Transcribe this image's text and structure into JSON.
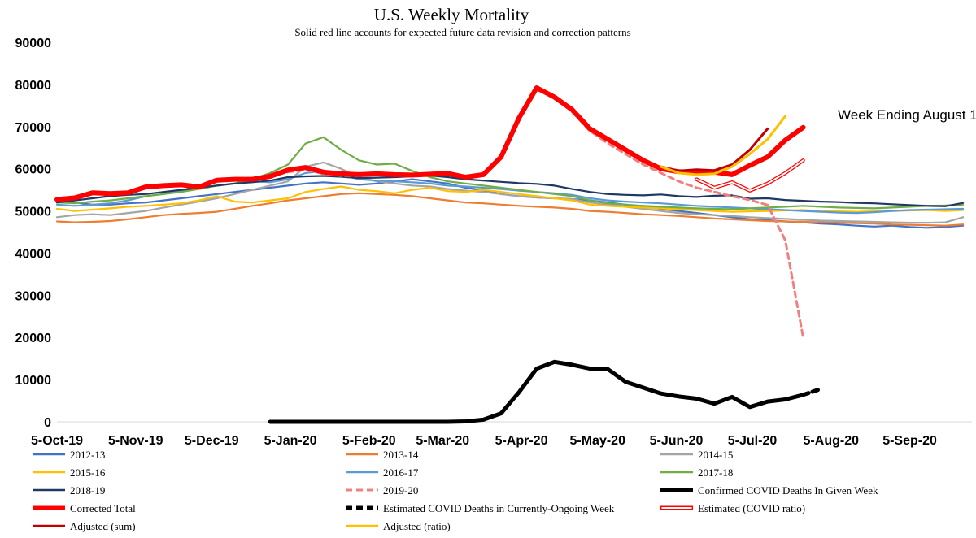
{
  "chart_data": {
    "type": "line",
    "title": "U.S. Weekly Mortality",
    "subtitle": "Solid red line accounts for expected future data revision and correction patterns",
    "annotation": "Week Ending August 1",
    "ylim": [
      0,
      90000
    ],
    "yticks": [
      "0",
      "10000",
      "20000",
      "30000",
      "40000",
      "50000",
      "60000",
      "70000",
      "80000",
      "90000"
    ],
    "x_tick_labels": [
      "5-Oct-19",
      "5-Nov-19",
      "5-Dec-19",
      "5-Jan-20",
      "5-Feb-20",
      "5-Mar-20",
      "5-Apr-20",
      "5-May-20",
      "5-Jun-20",
      "5-Jul-20",
      "5-Aug-20",
      "5-Sep-20"
    ],
    "x_weeks": 52,
    "grid": false,
    "legend_position": "bottom",
    "series": [
      {
        "name": "2012-13",
        "color": "#4472C4",
        "width": 2.2,
        "style": "solid",
        "values": [
          52500,
          52000,
          51500,
          51500,
          51800,
          52000,
          52500,
          53000,
          53500,
          54000,
          54500,
          55000,
          55500,
          56000,
          56500,
          56800,
          56500,
          56200,
          56500,
          57000,
          57500,
          57000,
          56500,
          55500,
          54800,
          54000,
          53500,
          53200,
          53000,
          52800,
          52500,
          52000,
          51500,
          51000,
          50500,
          50000,
          49500,
          49000,
          48500,
          48000,
          47800,
          47500,
          47300,
          47000,
          46800,
          46500,
          46300,
          46500,
          46200,
          46000,
          46200,
          46500
        ]
      },
      {
        "name": "2013-14",
        "color": "#ED7D31",
        "width": 2.2,
        "style": "solid",
        "values": [
          47500,
          47300,
          47400,
          47600,
          48000,
          48500,
          49000,
          49300,
          49500,
          49800,
          50500,
          51200,
          51800,
          52500,
          53000,
          53500,
          54000,
          54200,
          54000,
          53800,
          53500,
          53000,
          52500,
          52000,
          51800,
          51500,
          51200,
          51000,
          50800,
          50500,
          50000,
          49800,
          49500,
          49200,
          49000,
          48800,
          48500,
          48200,
          48000,
          47800,
          47600,
          47500,
          47400,
          47300,
          47200,
          47100,
          47000,
          46800,
          46700,
          46600,
          46500,
          46800
        ]
      },
      {
        "name": "2014-15",
        "color": "#A5A5A5",
        "width": 2.2,
        "style": "solid",
        "values": [
          48500,
          49000,
          49200,
          49000,
          49500,
          50000,
          50800,
          51500,
          52200,
          53000,
          54000,
          55000,
          56000,
          57000,
          60500,
          61500,
          60000,
          58000,
          57000,
          56500,
          56000,
          55800,
          55200,
          54800,
          54500,
          54000,
          53500,
          53200,
          53000,
          52800,
          52000,
          51500,
          51000,
          50500,
          50000,
          49500,
          49200,
          49000,
          48800,
          48500,
          48300,
          48100,
          47900,
          47700,
          47600,
          47500,
          47400,
          47300,
          47200,
          47200,
          47300,
          48500
        ]
      },
      {
        "name": "2015-16",
        "color": "#FFC000",
        "width": 2.2,
        "style": "solid",
        "values": [
          50500,
          50000,
          50300,
          50600,
          51000,
          51200,
          51500,
          51800,
          52500,
          53500,
          52200,
          52000,
          52500,
          53000,
          54500,
          55200,
          55800,
          55000,
          54700,
          54200,
          55000,
          55500,
          54700,
          54500,
          55000,
          54500,
          54000,
          53500,
          53000,
          52500,
          51500,
          51200,
          51000,
          50800,
          50600,
          50400,
          50200,
          50000,
          49800,
          49900,
          50000,
          50100,
          50200,
          50000,
          49900,
          49800,
          49900,
          50000,
          50100,
          50200,
          50000,
          50200
        ]
      },
      {
        "name": "2016-17",
        "color": "#5B9BD5",
        "width": 2.2,
        "style": "solid",
        "values": [
          51500,
          51200,
          51500,
          51800,
          52500,
          53500,
          54000,
          54800,
          55500,
          56000,
          56500,
          57000,
          56800,
          57500,
          59000,
          59500,
          58500,
          57500,
          57200,
          57000,
          56800,
          56500,
          56000,
          55800,
          55500,
          55200,
          54800,
          54500,
          54200,
          53800,
          53000,
          52500,
          52200,
          52000,
          51800,
          51500,
          51200,
          51000,
          50800,
          50600,
          50400,
          50200,
          50000,
          49800,
          49600,
          49500,
          49700,
          50000,
          50200,
          50300,
          50400,
          50500
        ]
      },
      {
        "name": "2017-18",
        "color": "#70AD47",
        "width": 2.2,
        "style": "solid",
        "values": [
          52000,
          51800,
          52200,
          52500,
          53000,
          53500,
          54000,
          54500,
          55200,
          56000,
          56500,
          57500,
          59000,
          61000,
          66000,
          67500,
          64500,
          62000,
          61000,
          61200,
          59500,
          58000,
          57000,
          56500,
          56000,
          55500,
          55000,
          54500,
          54000,
          53500,
          52500,
          51800,
          51500,
          51200,
          51000,
          50800,
          50600,
          50500,
          50400,
          50600,
          50800,
          51000,
          51200,
          51000,
          50800,
          50700,
          50600,
          50800,
          51000,
          51200,
          51300,
          51500
        ]
      },
      {
        "name": "2018-19",
        "color": "#1F3864",
        "width": 2.2,
        "style": "solid",
        "values": [
          52000,
          52500,
          53000,
          53500,
          53800,
          54000,
          54500,
          55000,
          55500,
          56000,
          56500,
          56800,
          57200,
          58000,
          58200,
          58300,
          58100,
          57800,
          57900,
          58000,
          58200,
          58400,
          58000,
          57500,
          57200,
          56900,
          56600,
          56400,
          56000,
          55200,
          54500,
          54000,
          53800,
          53700,
          53900,
          53500,
          53300,
          53600,
          53700,
          52900,
          53000,
          52600,
          52400,
          52200,
          52100,
          51900,
          51800,
          51600,
          51400,
          51200,
          51100,
          51900
        ]
      },
      {
        "name": "2019-20",
        "color": "#F08080",
        "width": 3,
        "style": "dash",
        "values": [
          52700,
          53100,
          54300,
          54100,
          54300,
          55700,
          56000,
          56200,
          55700,
          57000,
          57500,
          57500,
          58200,
          59200,
          59800,
          58800,
          58400,
          58300,
          58800,
          58600,
          58400,
          58700,
          58800,
          58100,
          58500,
          62500,
          72000,
          78800,
          77000,
          73500,
          69000,
          66000,
          63500,
          61000,
          59000,
          57000,
          55500,
          54500,
          53500,
          52600,
          51400,
          43000,
          20000,
          null,
          null,
          null,
          null,
          null,
          null,
          null,
          null,
          null
        ]
      },
      {
        "name": "Confirmed COVID Deaths In Given Week",
        "color": "#000000",
        "width": 5,
        "style": "solid",
        "values": [
          null,
          null,
          null,
          null,
          null,
          null,
          null,
          null,
          null,
          null,
          null,
          null,
          0,
          0,
          0,
          0,
          0,
          0,
          0,
          0,
          0,
          0,
          0,
          100,
          500,
          2000,
          7000,
          12600,
          14200,
          13500,
          12600,
          12500,
          9500,
          8100,
          6700,
          6000,
          5500,
          4300,
          5900,
          3500,
          4800,
          5300,
          6400,
          null,
          null,
          null,
          null,
          null,
          null,
          null,
          null,
          null
        ]
      },
      {
        "name": "Estimated COVID Deaths in Currently-Ongoing Week",
        "color": "#000000",
        "width": 5,
        "style": "dash",
        "values": [
          null,
          null,
          null,
          null,
          null,
          null,
          null,
          null,
          null,
          null,
          null,
          null,
          null,
          null,
          null,
          null,
          null,
          null,
          null,
          null,
          null,
          null,
          null,
          null,
          null,
          null,
          null,
          null,
          null,
          null,
          null,
          null,
          null,
          null,
          null,
          null,
          null,
          null,
          null,
          null,
          null,
          null,
          6400,
          7800,
          null,
          null,
          null,
          null,
          null,
          null,
          null,
          null
        ]
      },
      {
        "name": "Corrected Total",
        "color": "#FF0000",
        "width": 6,
        "style": "solid",
        "values": [
          52700,
          53100,
          54300,
          54100,
          54300,
          55700,
          56000,
          56200,
          55700,
          57300,
          57500,
          57500,
          58200,
          59700,
          60300,
          59200,
          58800,
          58600,
          58800,
          58600,
          58500,
          58700,
          58900,
          58000,
          58600,
          62800,
          72000,
          79200,
          77000,
          74000,
          69500,
          67000,
          64500,
          62000,
          60000,
          59300,
          59000,
          59200,
          58600,
          60800,
          62800,
          66800,
          69800,
          null,
          null,
          null,
          null,
          null,
          null,
          null,
          null,
          null
        ]
      },
      {
        "name": "Estimated (COVID ratio)",
        "color": "#FF0000",
        "width": 4.5,
        "style": "double",
        "values": [
          null,
          null,
          null,
          null,
          null,
          null,
          null,
          null,
          null,
          null,
          null,
          null,
          null,
          null,
          null,
          null,
          null,
          null,
          null,
          null,
          null,
          null,
          null,
          null,
          null,
          null,
          null,
          null,
          null,
          null,
          null,
          null,
          null,
          null,
          null,
          null,
          57500,
          55500,
          56800,
          54800,
          56500,
          59000,
          62000,
          null,
          null,
          null,
          null,
          null,
          null,
          null,
          null,
          null
        ]
      },
      {
        "name": "Adjusted (sum)",
        "color": "#C00000",
        "width": 3,
        "style": "solid",
        "values": [
          null,
          null,
          null,
          null,
          null,
          null,
          null,
          null,
          null,
          null,
          null,
          null,
          null,
          null,
          null,
          null,
          null,
          null,
          null,
          null,
          null,
          null,
          null,
          null,
          null,
          null,
          null,
          null,
          null,
          null,
          null,
          null,
          null,
          null,
          60500,
          59500,
          59800,
          59600,
          61000,
          64500,
          69500,
          null,
          null,
          null,
          null,
          null,
          null,
          null,
          null,
          null,
          null,
          null
        ]
      },
      {
        "name": "Adjusted (ratio)",
        "color": "#FFC000",
        "width": 3,
        "style": "solid",
        "values": [
          null,
          null,
          null,
          null,
          null,
          null,
          null,
          null,
          null,
          null,
          null,
          null,
          null,
          null,
          null,
          null,
          null,
          null,
          null,
          null,
          null,
          null,
          null,
          null,
          null,
          null,
          null,
          null,
          null,
          null,
          null,
          null,
          null,
          null,
          60500,
          59000,
          58600,
          58800,
          60500,
          63500,
          67000,
          72500,
          null,
          null,
          null,
          null,
          null,
          null,
          null,
          null,
          null,
          null
        ]
      }
    ]
  },
  "legend": [
    {
      "label": "2012-13",
      "color": "#4472C4",
      "style": "solid"
    },
    {
      "label": "2013-14",
      "color": "#ED7D31",
      "style": "solid"
    },
    {
      "label": "2014-15",
      "color": "#A5A5A5",
      "style": "solid"
    },
    {
      "label": "2015-16",
      "color": "#FFC000",
      "style": "solid"
    },
    {
      "label": "2016-17",
      "color": "#5B9BD5",
      "style": "solid"
    },
    {
      "label": "2017-18",
      "color": "#70AD47",
      "style": "solid"
    },
    {
      "label": "2018-19",
      "color": "#1F3864",
      "style": "solid"
    },
    {
      "label": "2019-20",
      "color": "#F08080",
      "style": "dash"
    },
    {
      "label": "Confirmed COVID Deaths In Given Week",
      "color": "#000000",
      "style": "thick"
    },
    {
      "label": "Corrected Total",
      "color": "#FF0000",
      "style": "thick"
    },
    {
      "label": "Estimated COVID Deaths in Currently-Ongoing Week",
      "color": "#000000",
      "style": "thickdash"
    },
    {
      "label": "Estimated (COVID ratio)",
      "color": "#FF0000",
      "style": "double"
    },
    {
      "label": "Adjusted (sum)",
      "color": "#C00000",
      "style": "solid"
    },
    {
      "label": "Adjusted (ratio)",
      "color": "#FFC000",
      "style": "solid"
    }
  ]
}
